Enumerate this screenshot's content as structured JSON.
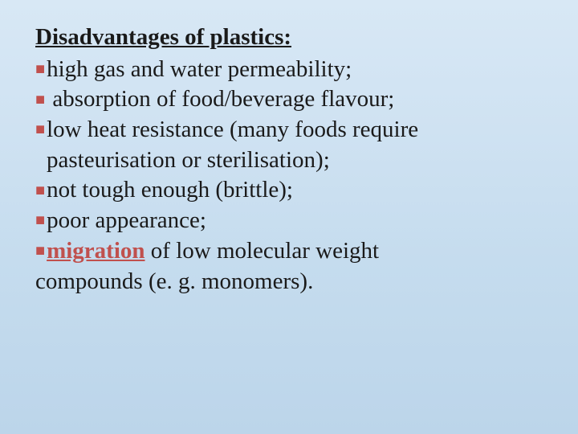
{
  "slide": {
    "heading": "Disadvantages of plastics:",
    "items": [
      {
        "text": "high gas and water permeability;",
        "indent": false
      },
      {
        "text": " absorption of food/beverage flavour;",
        "indent": false
      },
      {
        "text": "low heat resistance (many foods require",
        "indent": false
      },
      {
        "text_cont": "pasteurisation or sterilisation);",
        "indent": true
      },
      {
        "text": "not tough enough (brittle);",
        "indent": false
      },
      {
        "text": "poor appearance;",
        "indent": false
      }
    ],
    "last_item": {
      "keyword": "migration",
      "rest_line1": " of low molecular weight",
      "rest_line2": "compounds (e. g. monomers)."
    },
    "colors": {
      "bullet_color": "#c0504d",
      "text_color": "#1a1a1a",
      "bg_top": "#d8e8f5",
      "bg_bottom": "#bcd5ea"
    },
    "font": {
      "family": "Times New Roman",
      "size_pt": 29,
      "heading_weight": "bold"
    }
  }
}
